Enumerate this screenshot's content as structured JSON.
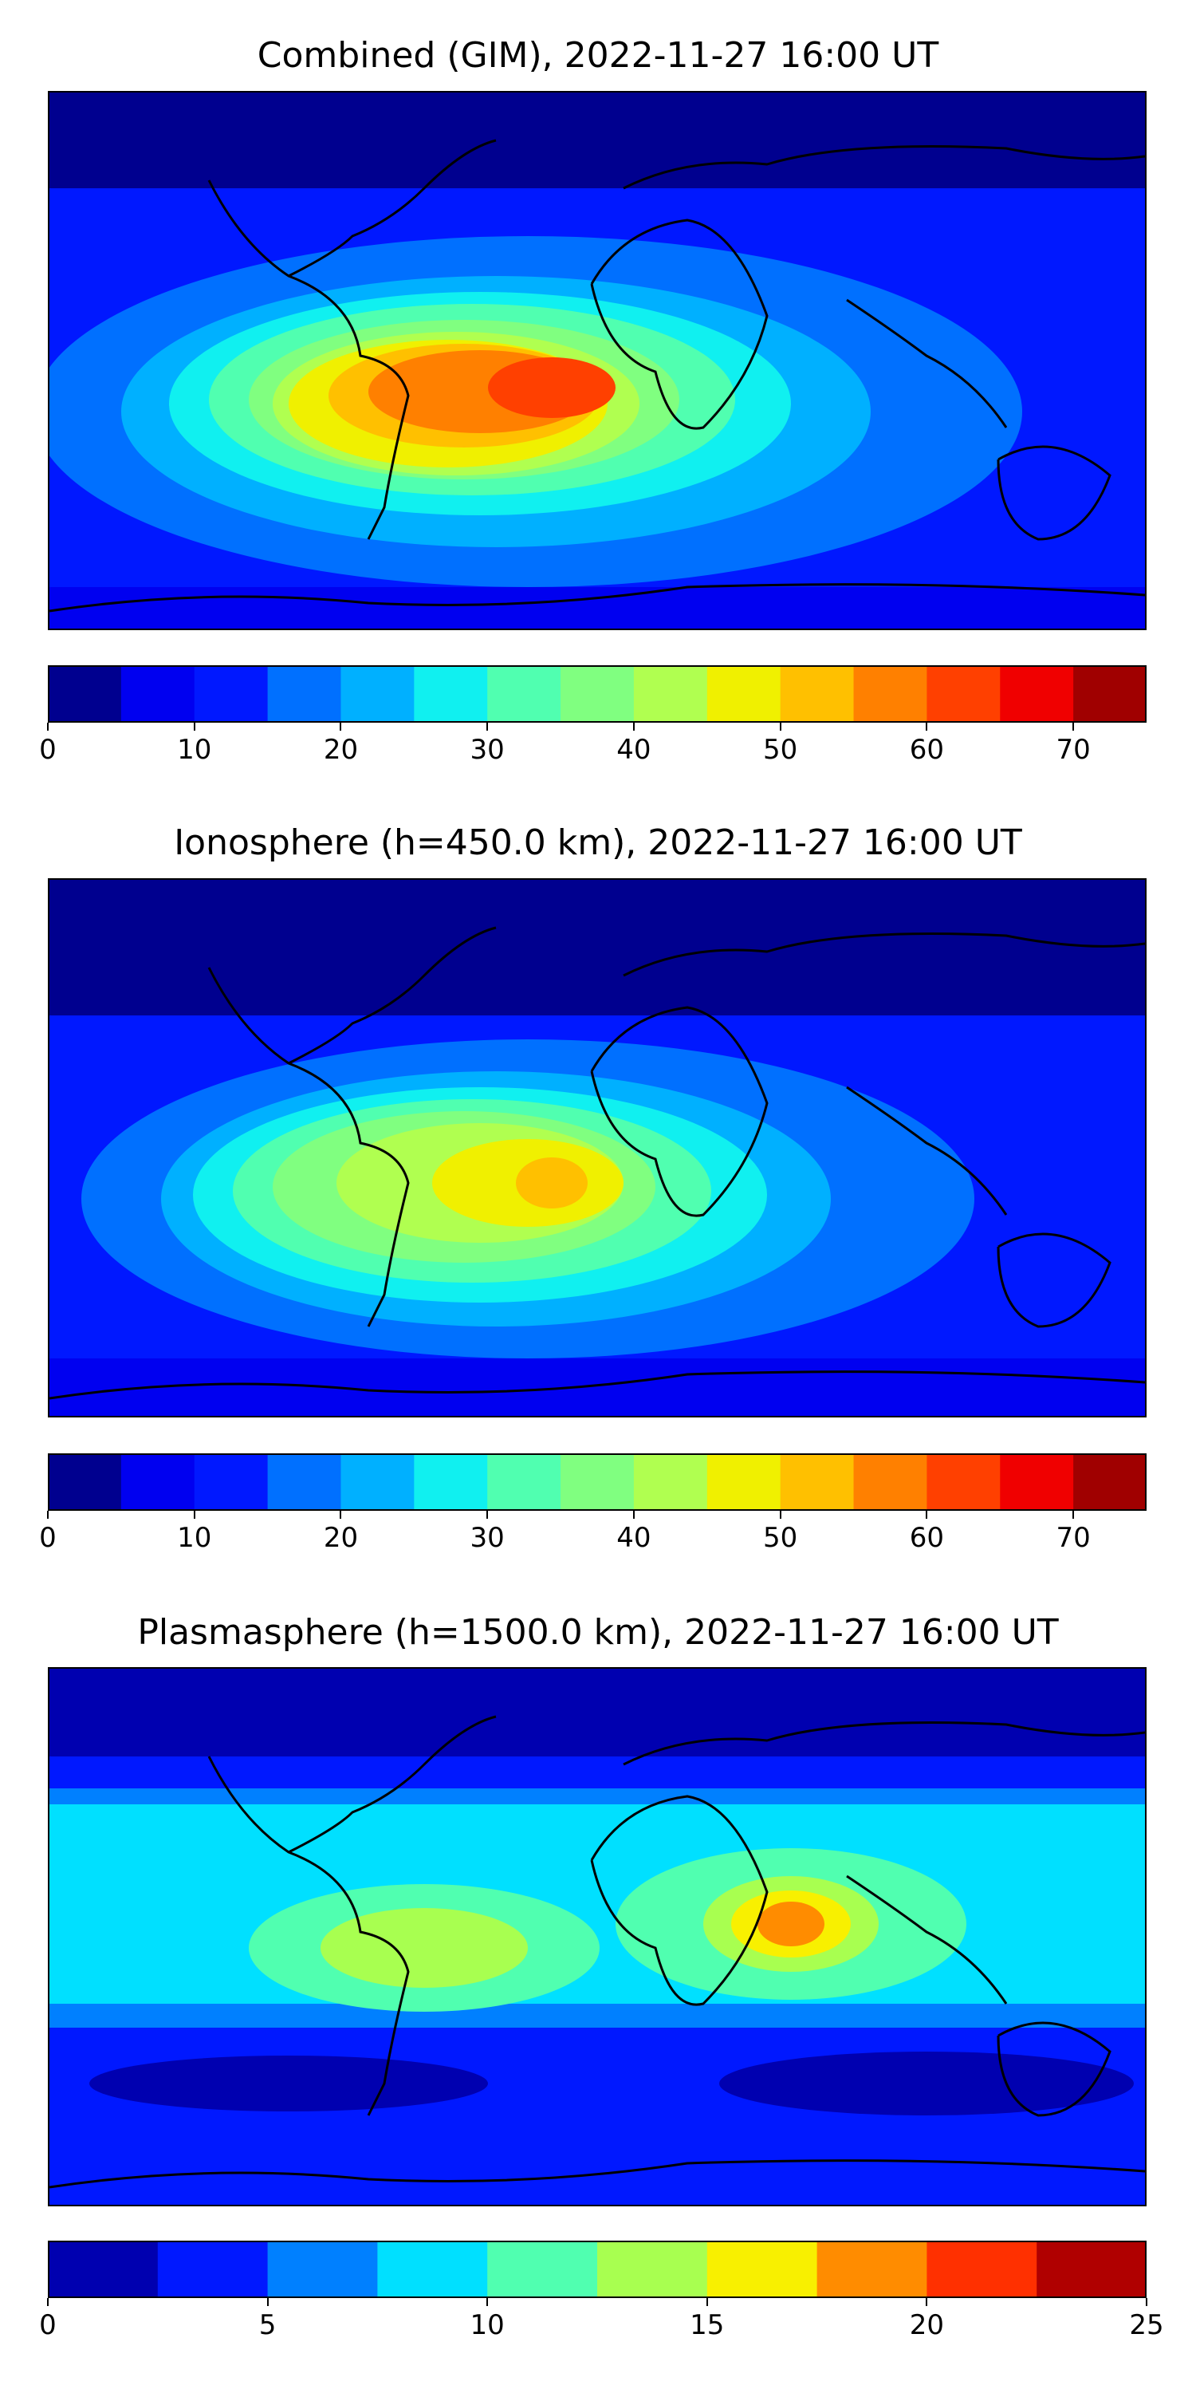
{
  "panels": [
    {
      "title": "Combined (GIM), 2022-11-27 16:00 UT",
      "colorbar": {
        "min": 0,
        "max": 75,
        "step": 5,
        "ticks": [
          "0",
          "10",
          "20",
          "30",
          "40",
          "50",
          "60",
          "70"
        ],
        "tick_values": [
          0,
          10,
          20,
          30,
          40,
          50,
          60,
          70
        ]
      }
    },
    {
      "title": "Ionosphere  (h=450.0 km), 2022-11-27 16:00 UT",
      "colorbar": {
        "min": 0,
        "max": 75,
        "step": 5,
        "ticks": [
          "0",
          "10",
          "20",
          "30",
          "40",
          "50",
          "60",
          "70"
        ],
        "tick_values": [
          0,
          10,
          20,
          30,
          40,
          50,
          60,
          70
        ]
      }
    },
    {
      "title": "Plasmasphere (h=1500.0 km), 2022-11-27 16:00 UT",
      "colorbar": {
        "min": 0,
        "max": 25,
        "step": 2.5,
        "ticks": [
          "0",
          "5",
          "10",
          "15",
          "20",
          "25"
        ],
        "tick_values": [
          0,
          5,
          10,
          15,
          20,
          25
        ]
      }
    }
  ],
  "colors": {
    "levels15": [
      "#00008f",
      "#0000f0",
      "#0018ff",
      "#0070ff",
      "#00b0ff",
      "#10f0f0",
      "#50ffb0",
      "#80ff80",
      "#b0ff50",
      "#f0f000",
      "#ffc000",
      "#ff8000",
      "#ff4000",
      "#f00000",
      "#a00000"
    ],
    "levels10": [
      "#0000b0",
      "#0018ff",
      "#0080ff",
      "#00e0ff",
      "#50ffb0",
      "#a8ff50",
      "#f8f000",
      "#ff8c00",
      "#ff3000",
      "#b00000"
    ],
    "land_outline": "#000000"
  }
}
